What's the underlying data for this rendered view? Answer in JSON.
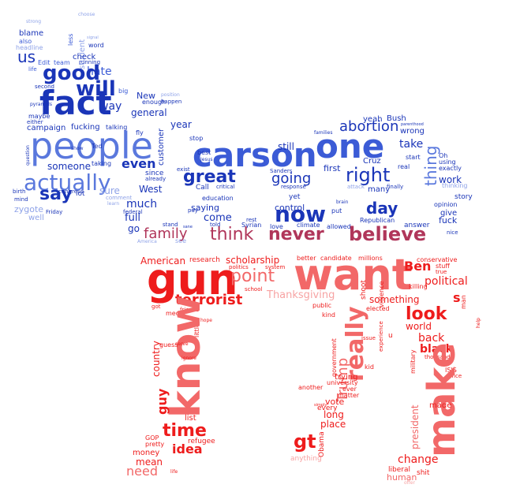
{
  "palette": {
    "blue_dark": "#1a35b8",
    "blue_mid": "#3b5bd6",
    "blue_light": "#8fa3e8",
    "red_dark": "#ee1c1c",
    "red_mid": "#f26868",
    "red_light": "#f7a3a3",
    "maroon": "#b0365a"
  },
  "blue_words": {
    "strong": "strong",
    "choose": "choose",
    "less": "less",
    "student": "student",
    "signal": "signal",
    "blame": "blame",
    "also": "also",
    "word": "word",
    "headline": "headline",
    "us": "us",
    "check": "check",
    "edit": "Edit",
    "team": "team",
    "running": "running",
    "life": "life",
    "hate": "hate",
    "good": "good",
    "will": "will",
    "big": "big",
    "fact": "fact",
    "new": "New",
    "enough": "enough",
    "position": "position",
    "happen": "happen",
    "second": "second",
    "way": "way",
    "general": "general",
    "pyramids": "pyramids",
    "maybe": "maybe",
    "either": "either",
    "campaign": "campaign",
    "fucking": "fucking",
    "talking": "talking",
    "year": "year",
    "fly": "fly",
    "people": "people",
    "carson": "carson",
    "one": "one",
    "customer": "customer",
    "stop": "stop",
    "abortion": "abortion",
    "yeah": "yeah",
    "bush": "Bush",
    "families": "families",
    "parenthood": "parenthood",
    "wrong": "wrong",
    "start": "start",
    "oh": "Oh",
    "using": "using",
    "exactly": "exactly",
    "thinking": "thinking",
    "still": "still",
    "take": "take",
    "ted": "Ted",
    "taking": "taking",
    "show": "show",
    "question": "question",
    "someone": "someone",
    "even": "even",
    "great": "great",
    "going": "going",
    "right": "right",
    "real": "real",
    "thing": "thing",
    "work": "work",
    "actually": "actually",
    "congress": "congress",
    "since": "since",
    "already": "already",
    "exist": "exist",
    "best": "best",
    "sanders": "Sanders",
    "yet": "yet",
    "first": "first",
    "cruz": "Cruz",
    "call": "Call",
    "critical": "critical",
    "response": "response",
    "attack": "attack",
    "many": "many",
    "finally": "finally",
    "say": "say",
    "lot": "lot",
    "sure": "sure",
    "west": "West",
    "education": "education",
    "day": "day",
    "story": "story",
    "birth": "birth",
    "mind": "mind",
    "zygote": "zygote",
    "friday": "Friday",
    "well": "well",
    "learn": "learn",
    "comment": "comment",
    "much": "much",
    "saying": "saying",
    "now": "now",
    "put": "put",
    "brain": "brain",
    "give": "give",
    "opinion": "opinion",
    "control": "control",
    "come": "come",
    "syrian": "Syrian",
    "climate": "climate",
    "republican": "Republican",
    "answer": "answer",
    "fuck": "fuck",
    "federal": "federal",
    "pay": "pay",
    "told": "told",
    "rest": "rest",
    "love": "love",
    "allowed": "allowed",
    "nice": "nice",
    "full": "full",
    "go": "go",
    "stand": "stand",
    "sane": "sane",
    "america": "America",
    "see": "see",
    "jesus": "Jesus"
  },
  "red_words": {
    "family": "family",
    "think": "think",
    "never": "never",
    "believe": "believe",
    "american": "American",
    "research": "research",
    "better": "better",
    "candidate": "candidate",
    "millions": "millions",
    "scholarship": "scholarship",
    "system": "system",
    "conservative": "conservative",
    "stuff": "stuff",
    "gun": "gun",
    "want": "want",
    "point": "point",
    "ben": "Ben",
    "politics": "politics",
    "school": "school",
    "true": "true",
    "political": "political",
    "killing": "killing",
    "terrorist": "terrorist",
    "thanksgiving": "Thanksgiving",
    "violence": "violence",
    "shoot": "shoot",
    "s": "s",
    "public": "public",
    "something": "something",
    "man": "man",
    "got": "got",
    "friends": "friends",
    "media": "media",
    "hope": "hope",
    "little": "little",
    "elected": "elected",
    "really": "really",
    "look": "look",
    "world": "world",
    "country": "country",
    "know": "know",
    "trump": "Trump",
    "government": "government",
    "back": "back",
    "help": "help",
    "u": "u",
    "experience": "experience",
    "thousand": "thousand",
    "issue": "issue",
    "military": "military",
    "isis": "ISIS",
    "office": "office",
    "kind": "kind",
    "black": "black",
    "kid": "kid",
    "guess": "guess",
    "serve": "serve",
    "ignore": "ignore",
    "trying": "trying",
    "university": "university",
    "ever": "ever",
    "matter": "matter",
    "another": "another",
    "every": "every",
    "vote": "vote",
    "make": "make",
    "made": "made",
    "guy": "guy",
    "simply": "simply",
    "long": "long",
    "list": "list",
    "president": "president",
    "time": "time",
    "idea": "idea",
    "place": "place",
    "gt": "gt",
    "obama": "Obama",
    "gop": "GOP",
    "pretty": "pretty",
    "refugee": "refugee",
    "change": "change",
    "money": "money",
    "mean": "mean",
    "anything": "anything",
    "liberal": "liberal",
    "need": "need",
    "human": "human",
    "shit": "shit",
    "offer": "offer",
    "life": "life"
  }
}
